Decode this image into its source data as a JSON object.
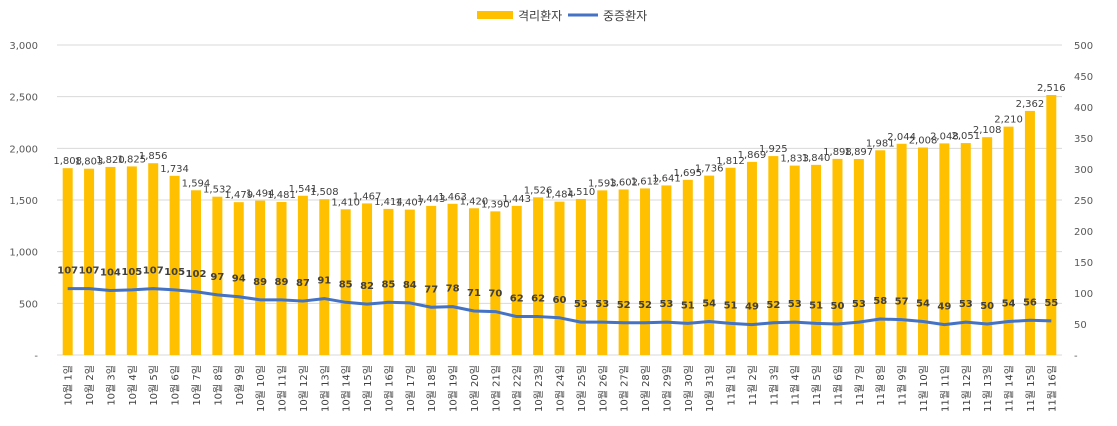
{
  "chart_data": {
    "type": "bar+line",
    "title": "",
    "legend_position": "top-center",
    "grid": true,
    "categories": [
      "10월 1일",
      "10월 2일",
      "10월 3일",
      "10월 4일",
      "10월 5일",
      "10월 6일",
      "10월 7일",
      "10월 8일",
      "10월 9일",
      "10월 10일",
      "10월 11일",
      "10월 12일",
      "10월 13일",
      "10월 14일",
      "10월 15일",
      "10월 16일",
      "10월 17일",
      "10월 18일",
      "10월 19일",
      "10월 20일",
      "10월 21일",
      "10월 22일",
      "10월 23일",
      "10월 24일",
      "10월 25일",
      "10월 26일",
      "10월 27일",
      "10월 28일",
      "10월 29일",
      "10월 30일",
      "10월 31일",
      "11월 1일",
      "11월 2일",
      "11월 3일",
      "11월 4일",
      "11월 5일",
      "11월 6일",
      "11월 7일",
      "11월 8일",
      "11월 9일",
      "11월 10일",
      "11월 11일",
      "11월 12일",
      "11월 13일",
      "11월 14일",
      "11월 15일",
      "11월 16일"
    ],
    "series": [
      {
        "name": "격리환자",
        "type": "bar",
        "axis": "left",
        "color": "#FFC000",
        "values": [
          1808,
          1803,
          1820,
          1825,
          1856,
          1734,
          1594,
          1532,
          1479,
          1494,
          1481,
          1541,
          1508,
          1410,
          1467,
          1414,
          1407,
          1443,
          1463,
          1420,
          1390,
          1443,
          1526,
          1484,
          1510,
          1593,
          1602,
          1612,
          1641,
          1695,
          1736,
          1812,
          1869,
          1925,
          1833,
          1840,
          1898,
          1897,
          1981,
          2044,
          2008,
          2048,
          2051,
          2108,
          2210,
          2362,
          2516
        ],
        "labels": [
          "1,808",
          "1,803",
          "1,820",
          "1,825",
          "1,856",
          "1,734",
          "1,594",
          "1,532",
          "1,479",
          "1,494",
          "1,481",
          "1,541",
          "1,508",
          "1,410",
          "1,467",
          "1,414",
          "1,407",
          "1,443",
          "1,463",
          "1,420",
          "1,390",
          "1,443",
          "1,526",
          "1,484",
          "1,510",
          "1,593",
          "1,602",
          "1,612",
          "1,641",
          "1,695",
          "1,736",
          "1,812",
          "1,869",
          "1,925",
          "1,833",
          "1,840",
          "1,898",
          "1,897",
          "1,981",
          "2,044",
          "2,008",
          "2,048",
          "2,051",
          "2,108",
          "2,210",
          "2,362",
          "2,516"
        ]
      },
      {
        "name": "중증환자",
        "type": "line",
        "axis": "right",
        "color": "#4472C4",
        "values": [
          107,
          107,
          104,
          105,
          107,
          105,
          102,
          97,
          94,
          89,
          89,
          87,
          91,
          85,
          82,
          85,
          84,
          77,
          78,
          71,
          70,
          62,
          62,
          60,
          53,
          53,
          52,
          52,
          53,
          51,
          54,
          51,
          49,
          52,
          53,
          51,
          50,
          53,
          58,
          57,
          54,
          49,
          53,
          50,
          54,
          56,
          55
        ]
      }
    ],
    "y_left": {
      "min": 0,
      "max": 3000,
      "ticks": [
        "-",
        "500",
        "1,000",
        "1,500",
        "2,000",
        "2,500",
        "3,000"
      ]
    },
    "y_right": {
      "min": 0,
      "max": 500,
      "ticks": [
        "-",
        "50",
        "100",
        "150",
        "200",
        "250",
        "300",
        "350",
        "400",
        "450",
        "500"
      ]
    }
  }
}
